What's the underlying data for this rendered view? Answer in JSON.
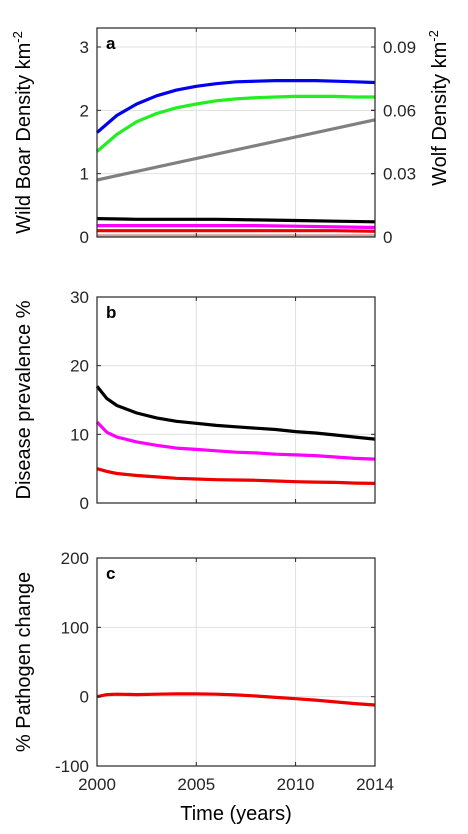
{
  "chart_data": [
    {
      "id": "a",
      "type": "line",
      "panel_label": "a",
      "xlabel": "",
      "ylabel": "Wild Boar Density km",
      "ylabel_sup": "-2",
      "ylabel_right": "Wolf Density km",
      "ylabel_right_sup": "-2",
      "xlim": [
        2000,
        2014
      ],
      "ylim": [
        0,
        3.3
      ],
      "ylim_right": [
        0,
        0.099
      ],
      "yticks": [
        0,
        1,
        2,
        3
      ],
      "ytick_labels": [
        "0",
        "1",
        "2",
        "3"
      ],
      "yticks_right": [
        0,
        0.03,
        0.06,
        0.09
      ],
      "ytick_labels_right": [
        "0",
        "0.03",
        "0.06",
        "0.09"
      ],
      "grid": true,
      "series": [
        {
          "color": "#0000ee",
          "axis": "left",
          "x": [
            2000,
            2001,
            2002,
            2003,
            2004,
            2005,
            2006,
            2007,
            2008,
            2009,
            2010,
            2011,
            2012,
            2013,
            2014
          ],
          "y": [
            1.65,
            1.92,
            2.1,
            2.23,
            2.32,
            2.38,
            2.42,
            2.45,
            2.46,
            2.47,
            2.47,
            2.47,
            2.46,
            2.45,
            2.44
          ]
        },
        {
          "color": "#22ee22",
          "axis": "left",
          "x": [
            2000,
            2001,
            2002,
            2003,
            2004,
            2005,
            2006,
            2007,
            2008,
            2009,
            2010,
            2011,
            2012,
            2013,
            2014
          ],
          "y": [
            1.35,
            1.62,
            1.82,
            1.95,
            2.04,
            2.1,
            2.15,
            2.18,
            2.2,
            2.21,
            2.22,
            2.22,
            2.22,
            2.21,
            2.21
          ]
        },
        {
          "color": "#808080",
          "axis": "left",
          "x": [
            2000,
            2014
          ],
          "y": [
            0.9,
            1.85
          ]
        },
        {
          "color": "#000000",
          "axis": "left",
          "x": [
            2000,
            2002,
            2004,
            2006,
            2008,
            2010,
            2012,
            2014
          ],
          "y": [
            0.29,
            0.28,
            0.28,
            0.28,
            0.27,
            0.26,
            0.25,
            0.24
          ]
        },
        {
          "color": "#ff00ff",
          "axis": "left",
          "x": [
            2000,
            2002,
            2004,
            2006,
            2008,
            2010,
            2012,
            2014
          ],
          "y": [
            0.18,
            0.18,
            0.18,
            0.18,
            0.18,
            0.17,
            0.16,
            0.15
          ]
        },
        {
          "color": "#ee0000",
          "axis": "left",
          "x": [
            2000,
            2002,
            2004,
            2006,
            2008,
            2010,
            2012,
            2014
          ],
          "y": [
            0.1,
            0.1,
            0.1,
            0.1,
            0.1,
            0.1,
            0.1,
            0.09
          ]
        },
        {
          "color": "#d2a7a0",
          "axis": "left",
          "x": [
            2000,
            2014
          ],
          "y": [
            0.02,
            0.02
          ]
        }
      ]
    },
    {
      "id": "b",
      "type": "line",
      "panel_label": "b",
      "xlabel": "",
      "ylabel": "Disease prevalence %",
      "xlim": [
        2000,
        2014
      ],
      "ylim": [
        0,
        30
      ],
      "yticks": [
        0,
        10,
        20,
        30
      ],
      "ytick_labels": [
        "0",
        "10",
        "20",
        "30"
      ],
      "grid": true,
      "series": [
        {
          "color": "#000000",
          "x": [
            2000,
            2000.5,
            2001,
            2002,
            2003,
            2004,
            2005,
            2006,
            2007,
            2008,
            2009,
            2010,
            2011,
            2012,
            2013,
            2014
          ],
          "y": [
            17,
            15.2,
            14.2,
            13.1,
            12.4,
            11.9,
            11.6,
            11.3,
            11.1,
            10.9,
            10.7,
            10.4,
            10.2,
            9.9,
            9.6,
            9.3
          ]
        },
        {
          "color": "#ff00ff",
          "x": [
            2000,
            2000.5,
            2001,
            2002,
            2003,
            2004,
            2005,
            2006,
            2007,
            2008,
            2009,
            2010,
            2011,
            2012,
            2013,
            2014
          ],
          "y": [
            11.8,
            10.3,
            9.6,
            8.9,
            8.4,
            8.0,
            7.8,
            7.6,
            7.4,
            7.3,
            7.1,
            7.0,
            6.9,
            6.7,
            6.5,
            6.4
          ]
        },
        {
          "color": "#ee0000",
          "x": [
            2000,
            2000.5,
            2001,
            2002,
            2003,
            2004,
            2005,
            2006,
            2007,
            2008,
            2009,
            2010,
            2011,
            2012,
            2013,
            2014
          ],
          "y": [
            5.0,
            4.6,
            4.3,
            4.0,
            3.8,
            3.6,
            3.5,
            3.4,
            3.35,
            3.3,
            3.2,
            3.1,
            3.05,
            3.0,
            2.9,
            2.85
          ]
        }
      ]
    },
    {
      "id": "c",
      "type": "line",
      "panel_label": "c",
      "xlabel": "Time (years)",
      "ylabel": "% Pathogen change",
      "xlim": [
        2000,
        2014
      ],
      "ylim": [
        -100,
        200
      ],
      "yticks": [
        -100,
        0,
        100,
        200
      ],
      "ytick_labels": [
        "-100",
        "0",
        "100",
        "200"
      ],
      "xticks": [
        2000,
        2005,
        2010,
        2014
      ],
      "xtick_labels": [
        "2000",
        "2005",
        "2010",
        "2014"
      ],
      "grid": true,
      "series": [
        {
          "color": "#ee0000",
          "x": [
            2000,
            2000.5,
            2001,
            2002,
            2003,
            2004,
            2005,
            2006,
            2007,
            2008,
            2009,
            2010,
            2011,
            2012,
            2013,
            2014
          ],
          "y": [
            0,
            3,
            3.5,
            3,
            3.5,
            4,
            4,
            3.5,
            2.5,
            1,
            -1,
            -3,
            -5,
            -7.5,
            -10,
            -12
          ]
        }
      ]
    }
  ]
}
